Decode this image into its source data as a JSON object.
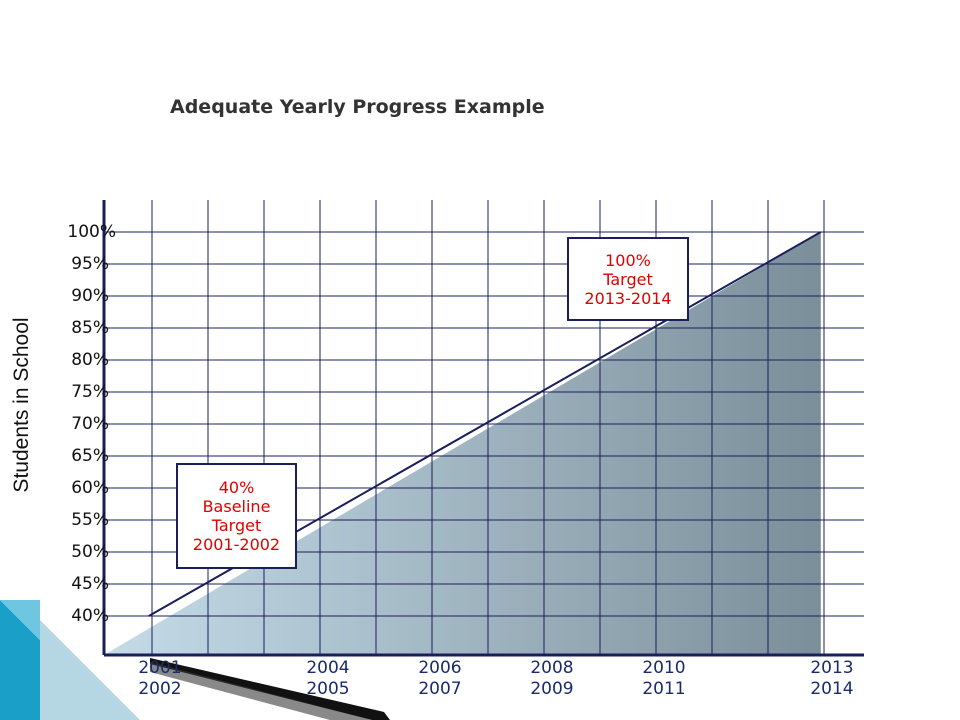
{
  "chart_data": {
    "type": "area",
    "title": "Adequate Yearly Progress Example",
    "ylabel": "Students in School",
    "xlabel": "",
    "y_ticks": [
      "40%",
      "45%",
      "50%",
      "55%",
      "60%",
      "65%",
      "70%",
      "75%",
      "80%",
      "85%",
      "90%",
      "95%",
      "100%"
    ],
    "ylim": [
      35,
      100
    ],
    "x_ticks": [
      {
        "top": "2001",
        "bottom": "2002",
        "year_index": 1
      },
      {
        "top": "2004",
        "bottom": "2005",
        "year_index": 4
      },
      {
        "top": "2006",
        "bottom": "2007",
        "year_index": 6
      },
      {
        "top": "2008",
        "bottom": "2009",
        "year_index": 8
      },
      {
        "top": "2010",
        "bottom": "2011",
        "year_index": 10
      },
      {
        "top": "2013",
        "bottom": "2014",
        "year_index": 13
      }
    ],
    "series": [
      {
        "values": [
          [
            1,
            40
          ],
          [
            13,
            100
          ]
        ]
      }
    ],
    "annotations": [
      {
        "lines": [
          "40%",
          "Baseline",
          "Target",
          "2001-2002"
        ],
        "year_index": 1,
        "value": 40,
        "color": "#e00000"
      },
      {
        "lines": [
          "100%",
          "Target",
          "2013-2014"
        ],
        "year_index": 13,
        "value": 100,
        "color": "#e00000"
      }
    ],
    "grid": true,
    "colors": {
      "axis": "#1a1f5c",
      "grid": "#1a1f5c",
      "fill_light": "#c5dce8",
      "fill_dark": "#7b8f9a"
    }
  }
}
